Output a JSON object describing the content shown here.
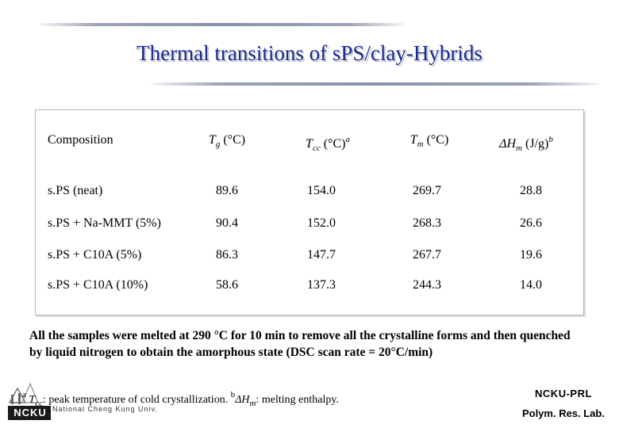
{
  "title": "Thermal transitions of sPS/clay-Hybrids",
  "table": {
    "headers": {
      "composition": "Composition",
      "tg_sym": "T",
      "tg_sub": "g",
      "tg_unit": " (°C)",
      "tcc_sym": "T",
      "tcc_sub": "cc",
      "tcc_unit": " (°C)",
      "tcc_sup": "a",
      "tm_sym": "T",
      "tm_sub": "m",
      "tm_unit": " (°C)",
      "hm_sym": "ΔH",
      "hm_sub": "m",
      "hm_unit": " (J/g)",
      "hm_sup": "b"
    },
    "rows": [
      {
        "composition": "s.PS (neat)",
        "tg": "89.6",
        "tcc": "154.0",
        "tm": "269.7",
        "hm": "28.8"
      },
      {
        "composition": "s.PS + Na-MMT (5%)",
        "tg": "90.4",
        "tcc": "152.0",
        "tm": "268.3",
        "hm": "26.6"
      },
      {
        "composition": "s.PS + C10A (5%)",
        "tg": "86.3",
        "tcc": "147.7",
        "tm": "267.7",
        "hm": "19.6"
      },
      {
        "composition": "s.PS + C10A (10%)",
        "tg": "58.6",
        "tcc": "137.3",
        "tm": "244.3",
        "hm": "14.0"
      }
    ]
  },
  "note": "All the samples were melted at 290 °C for 10 min to remove all the crystalline forms and then quenched by liquid nitrogen to obtain the amorphous state (DSC scan rate = 20°C/min)",
  "footnote": {
    "a_mark": "a",
    "a_sym": "T",
    "a_sub": "cc",
    "a_text": ": peak temperature of cold crystallization.",
    "b_mark": "b",
    "b_sym": "ΔH",
    "b_sub": "m",
    "b_text": ": melting enthalpy."
  },
  "logo": {
    "text": "NCKU",
    "subtitle": "National Cheng Kung Univ."
  },
  "lab": {
    "line1": "NCKU-PRL",
    "line2": "Polym. Res. Lab."
  },
  "colors": {
    "title": "#1a2a8c",
    "accent": "#d8a800",
    "logo_dark": "#1a1a1a"
  }
}
